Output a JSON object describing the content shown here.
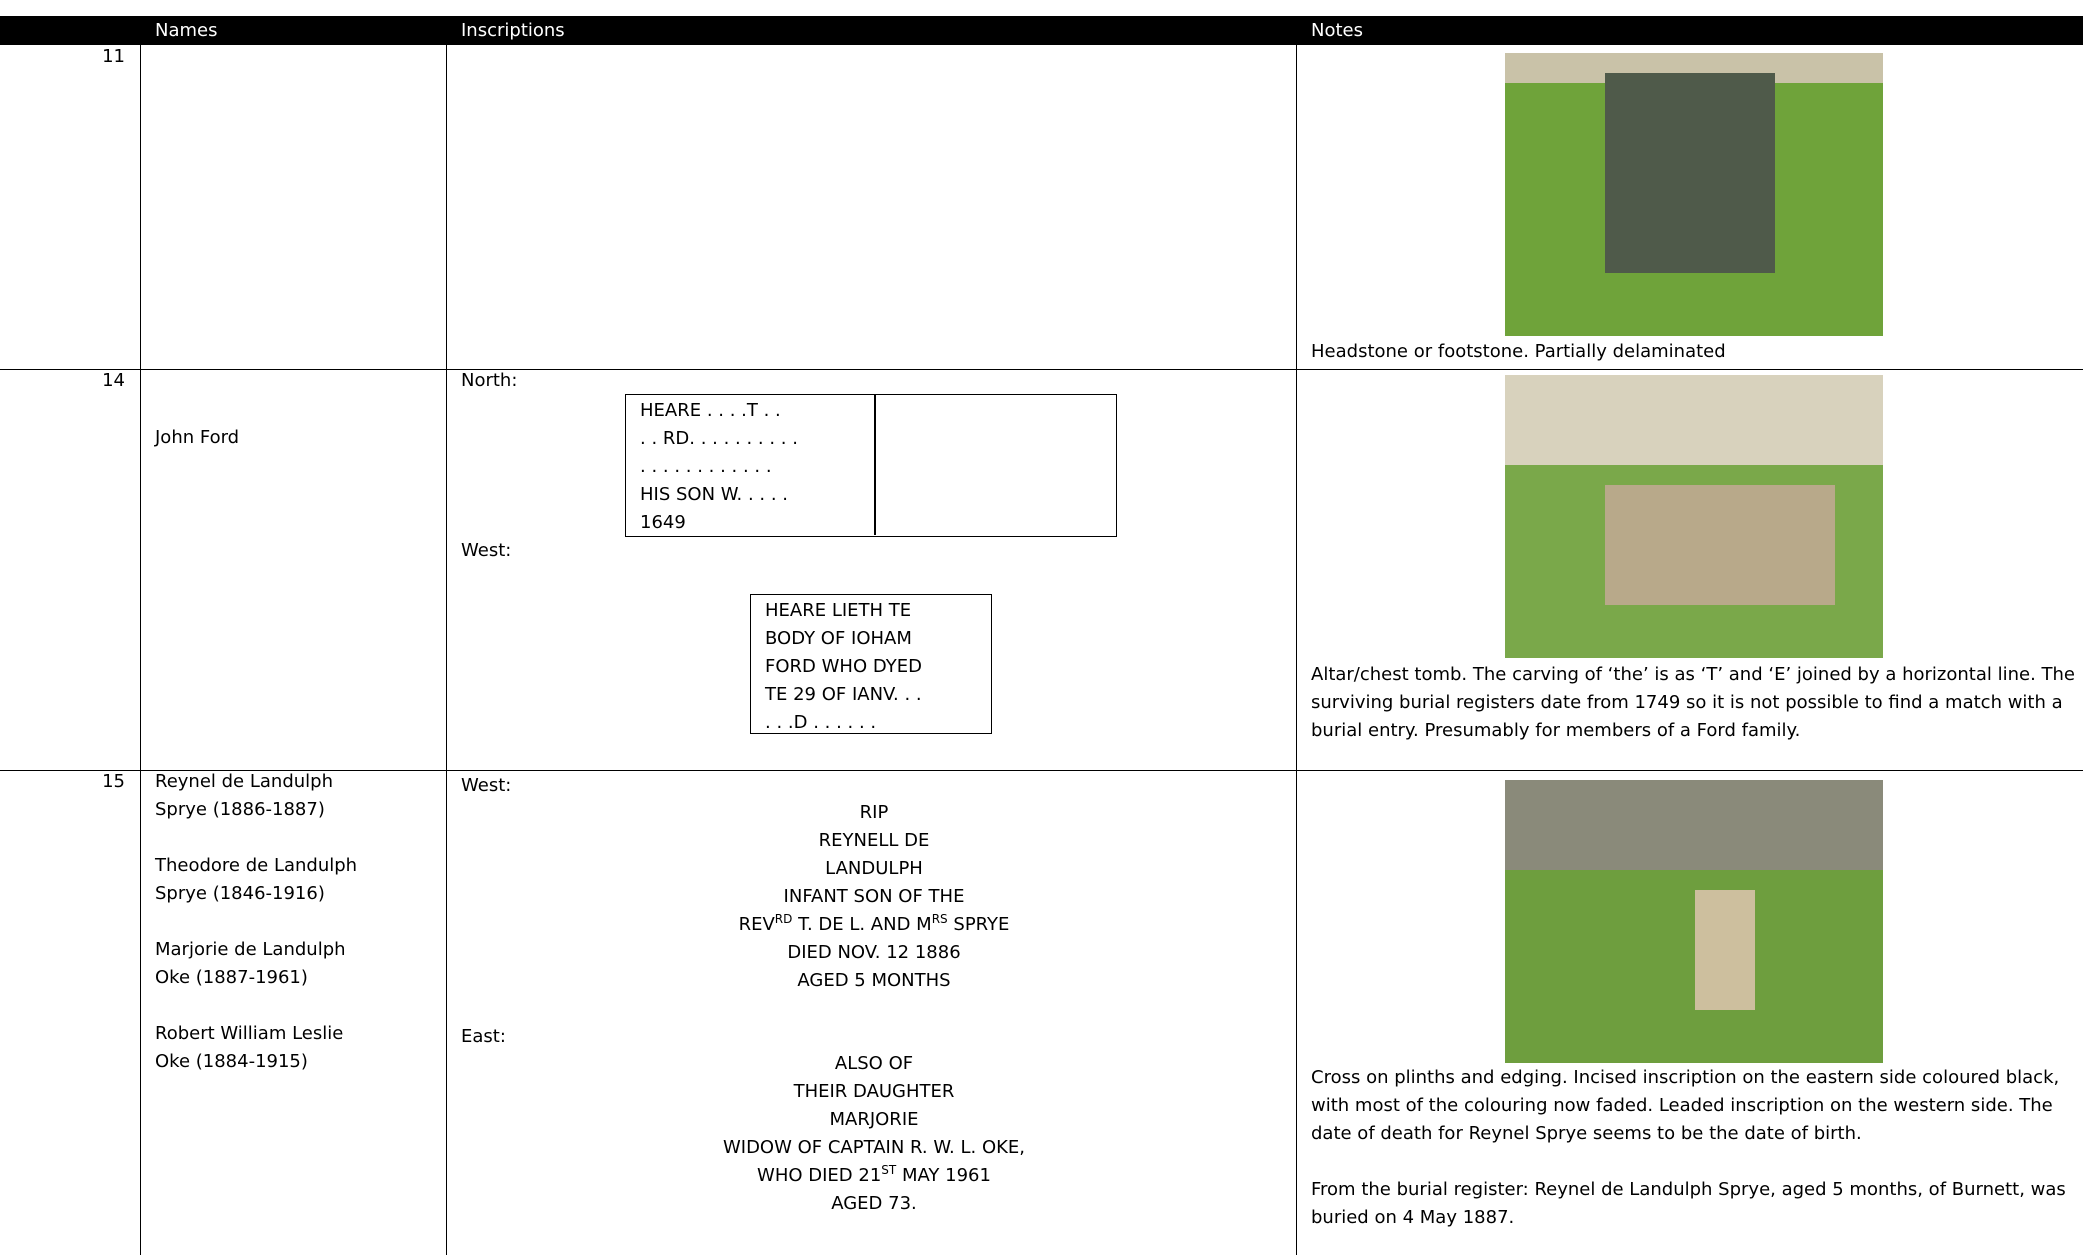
{
  "table": {
    "headers": [
      "Names",
      "Inscriptions",
      "Notes"
    ],
    "rows": [
      {
        "number": "11",
        "names": [],
        "inscriptions": [],
        "notes": [
          "Headstone or footstone. Partially delaminated"
        ]
      },
      {
        "number": "14",
        "names": [
          [
            "John Ford"
          ]
        ],
        "inscriptions": [
          {
            "label": "North:",
            "lines": [
              [
                "HEARE . . . .T . ."
              ],
              [
                ". . RD. . . . . . . . . ."
              ],
              [
                ". . . . . . . . . . . ."
              ],
              [
                "HIS SON W. . . . ."
              ],
              [
                "1649"
              ]
            ]
          },
          {
            "label": "West:",
            "lines": [
              [
                "HEARE LIETH TE"
              ],
              [
                "BODY OF IOHAM"
              ],
              [
                "FORD WHO DYED"
              ],
              [
                "TE 29 OF IANV. . ."
              ],
              [
                ". . .D . . . . . ."
              ]
            ]
          }
        ],
        "notes": [
          "Altar/chest tomb. The carving of ‘the’ is as ‘T’ and ‘E’ joined by a horizontal line. The surviving burial registers date from 1749 so it is not possible to find a match with a burial entry. Presumably for members of a Ford family."
        ]
      },
      {
        "number": "15",
        "names": [
          [
            "Reynel de Landulph",
            "Sprye (1886-1887)"
          ],
          [
            "Theodore de Landulph",
            "Sprye (1846-1916)"
          ],
          [
            "Marjorie de Landulph",
            "Oke (1887-1961)"
          ],
          [
            "Robert William Leslie",
            "Oke (1884-1915)"
          ]
        ],
        "inscriptions": [
          {
            "label": "West:",
            "lines": [
              [
                "RIP"
              ],
              [
                "REYNELL DE"
              ],
              [
                "LANDULPH"
              ],
              [
                "INFANT SON OF THE"
              ],
              [
                "REV",
                {
                  "sup": "RD"
                },
                " T. DE L. AND M",
                {
                  "sup": "RS"
                },
                " SPRYE"
              ],
              [
                "DIED NOV. 12 1886"
              ],
              [
                "AGED 5 MONTHS"
              ]
            ]
          },
          {
            "label": "East:",
            "lines": [
              [
                "ALSO OF"
              ],
              [
                "THEIR DAUGHTER"
              ],
              [
                "MARJORIE"
              ],
              [
                "WIDOW OF CAPTAIN R. W. L. OKE,"
              ],
              [
                "WHO DIED 21",
                {
                  "sup": "ST"
                },
                " MAY 1961"
              ],
              [
                "AGED 73."
              ]
            ]
          }
        ],
        "notes": [
          "Cross on plinths and edging. Incised inscription on the eastern side coloured black, with most of the colouring now faded. Leaded inscription on the western side. The date of death for Reynel Sprye seems to be the date of birth.",
          "From the burial register: Reynel de Landulph Sprye, aged 5 months, of Burnett, was buried on 4 May 1887."
        ]
      }
    ]
  }
}
